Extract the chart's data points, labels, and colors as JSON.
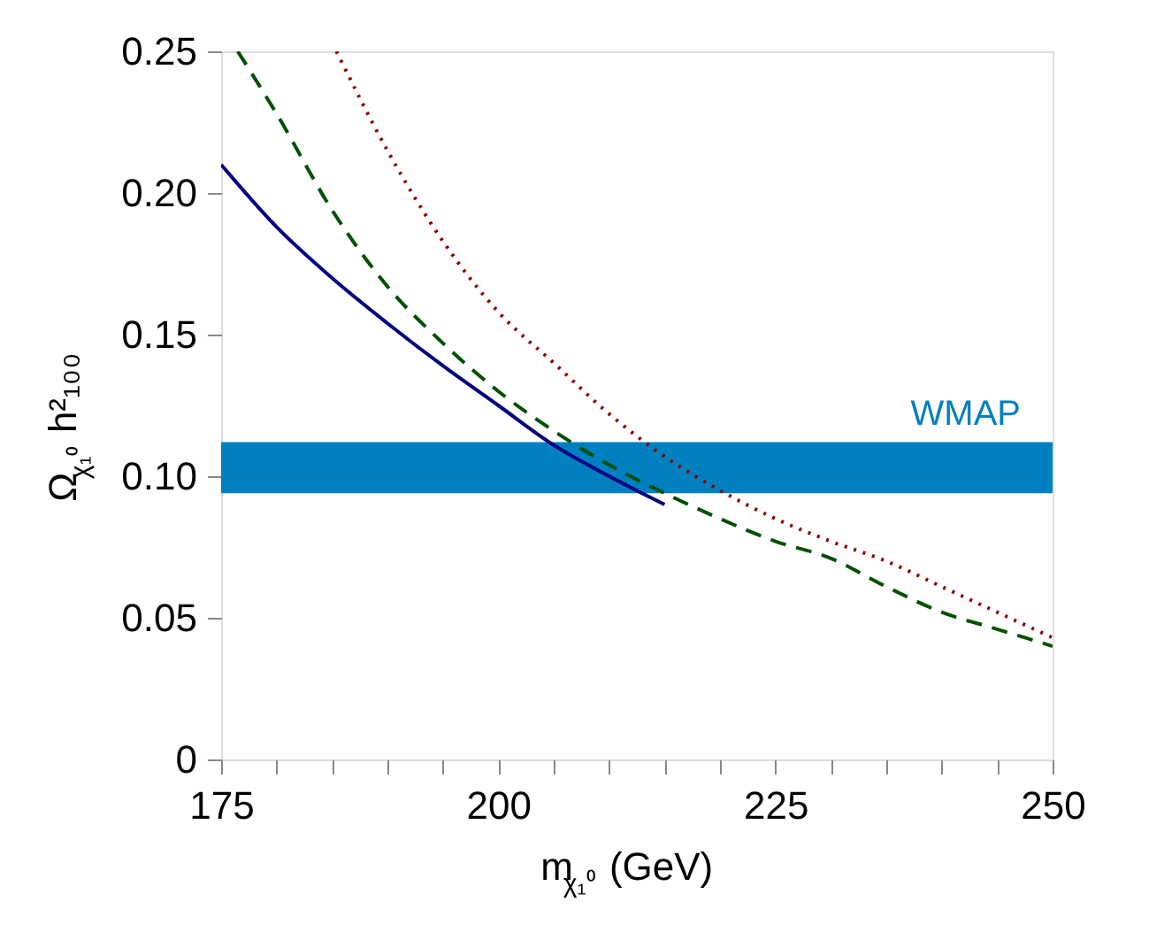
{
  "chart_data": {
    "type": "line",
    "xlabel": "m$_{χ₁⁰}$ (GeV)",
    "ylabel": "Ω$_{χ₁⁰}$ h²₁₀₀",
    "xlim": [
      175,
      250
    ],
    "ylim": [
      0,
      0.25
    ],
    "xticks": [
      175,
      {
        "value": 180,
        "label": null
      },
      {
        "value": 185,
        "label": null
      },
      {
        "value": 190,
        "label": null
      },
      {
        "value": 195,
        "label": null
      },
      200,
      {
        "value": 205,
        "label": null
      },
      {
        "value": 210,
        "label": null
      },
      {
        "value": 215,
        "label": null
      },
      {
        "value": 220,
        "label": null
      },
      225,
      {
        "value": 230,
        "label": null
      },
      {
        "value": 235,
        "label": null
      },
      {
        "value": 240,
        "label": null
      },
      {
        "value": 245,
        "label": null
      },
      250
    ],
    "yticks": [
      {
        "value": 0,
        "label": "0"
      },
      {
        "value": 0.05,
        "label": "0.05"
      },
      {
        "value": 0.1,
        "label": "0.10"
      },
      {
        "value": 0.15,
        "label": "0.15"
      },
      {
        "value": 0.2,
        "label": "0.20"
      },
      {
        "value": 0.25,
        "label": "0.25"
      }
    ],
    "grid": false,
    "series": [
      {
        "color": "#000080",
        "line_style": "solid",
        "x": [
          175,
          180,
          185,
          190,
          195,
          200,
          205,
          210,
          215
        ],
        "values": [
          0.21,
          0.188,
          0.17,
          0.154,
          0.139,
          0.125,
          0.111,
          0.1,
          0.09
        ]
      },
      {
        "color": "#005000",
        "line_style": "dashed",
        "x": [
          176.5,
          180,
          185,
          190,
          195,
          200,
          205,
          210,
          215,
          220,
          225,
          230,
          235,
          240,
          245,
          250
        ],
        "values": [
          0.25,
          0.228,
          0.194,
          0.167,
          0.147,
          0.13,
          0.116,
          0.104,
          0.094,
          0.085,
          0.077,
          0.071,
          0.061,
          0.052,
          0.046,
          0.04
        ]
      },
      {
        "color": "#900000",
        "line_style": "dotted",
        "x": [
          185.4,
          190,
          195,
          200,
          205,
          210,
          215,
          220,
          225,
          230,
          235,
          240,
          245,
          250
        ],
        "values": [
          0.25,
          0.215,
          0.183,
          0.158,
          0.14,
          0.122,
          0.107,
          0.095,
          0.085,
          0.077,
          0.07,
          0.061,
          0.052,
          0.043
        ]
      }
    ],
    "bands": [
      {
        "axis": "y",
        "from": 0.094,
        "to": 0.112,
        "label": "WMAP",
        "color": "#0080c0"
      }
    ]
  }
}
